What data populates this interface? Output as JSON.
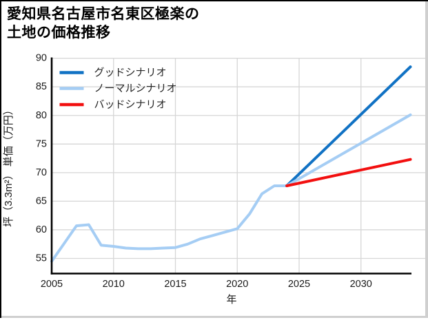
{
  "title": {
    "line1": "愛知県名古屋市名東区極楽の",
    "line2": "土地の価格推移"
  },
  "frame": {
    "background": "#ffffff",
    "top_left_border": "#000000",
    "bottom_right_border": "#cfcfcf"
  },
  "chart_data": {
    "type": "line",
    "title": "愛知県名古屋市名東区極楽の土地の価格推移",
    "xlabel": "年",
    "ylabel": "坪（3.3m²） 単価（万円）",
    "xlim": [
      2005,
      2035.3
    ],
    "ylim": [
      52.3,
      90.3
    ],
    "xticks": [
      2005,
      2010,
      2015,
      2020,
      2025,
      2030
    ],
    "yticks": [
      55,
      60,
      65,
      70,
      75,
      80,
      85,
      90
    ],
    "grid": true,
    "grid_color": "#d6d6d6",
    "axis_color": "#000000",
    "tick_label_color": "#1a1a1a",
    "legend_position": "upper-left",
    "legend": [
      {
        "label": "グッドシナリオ",
        "color": "#1172c4"
      },
      {
        "label": "ノーマルシナリオ",
        "color": "#a5cdf4"
      },
      {
        "label": "バッドシナリオ",
        "color": "#f20f0f"
      }
    ],
    "series": [
      {
        "id": "history",
        "legend_label": null,
        "color": "#a5cdf4",
        "x": [
          2005,
          2006,
          2007,
          2008,
          2009,
          2010,
          2011,
          2012,
          2013,
          2014,
          2015,
          2016,
          2017,
          2018,
          2019,
          2020,
          2021,
          2022,
          2023,
          2024
        ],
        "y": [
          54.5,
          57.6,
          60.7,
          60.9,
          57.3,
          57.1,
          56.8,
          56.7,
          56.7,
          56.8,
          56.9,
          57.5,
          58.4,
          59.0,
          59.6,
          60.2,
          62.8,
          66.3,
          67.7,
          67.7
        ]
      },
      {
        "id": "good",
        "legend_label": "グッドシナリオ",
        "color": "#1172c4",
        "x": [
          2024,
          2034
        ],
        "y": [
          67.7,
          88.5
        ]
      },
      {
        "id": "normal",
        "legend_label": "ノーマルシナリオ",
        "color": "#a5cdf4",
        "x": [
          2024,
          2034
        ],
        "y": [
          67.7,
          80.1
        ]
      },
      {
        "id": "bad",
        "legend_label": "バッドシナリオ",
        "color": "#f20f0f",
        "x": [
          2024,
          2034
        ],
        "y": [
          67.7,
          72.3
        ]
      }
    ]
  }
}
